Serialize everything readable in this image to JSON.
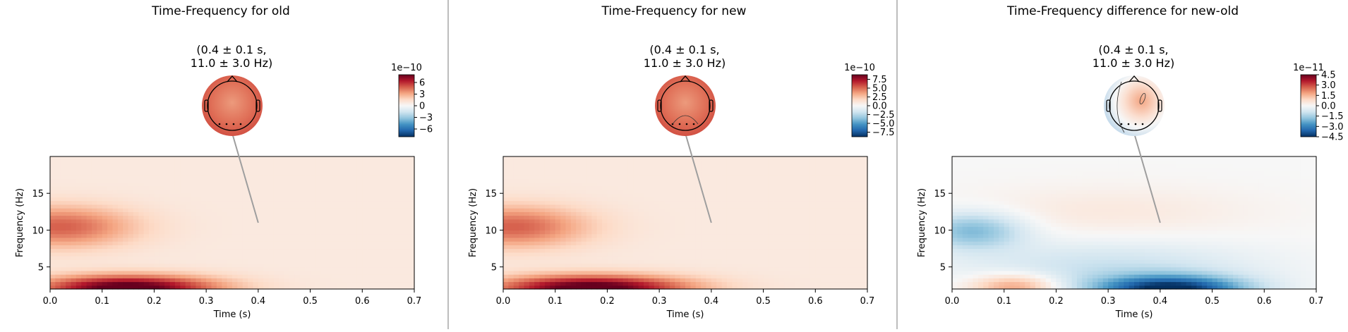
{
  "chart_data": [
    {
      "type": "heatmap",
      "title": "Time-Frequency for old",
      "xlabel": "Time (s)",
      "ylabel": "Frequency (Hz)",
      "xlim": [
        0.0,
        0.7
      ],
      "ylim": [
        2,
        20
      ],
      "xticks": [
        "0.0",
        "0.1",
        "0.2",
        "0.3",
        "0.4",
        "0.5",
        "0.6",
        "0.7"
      ],
      "yticks": [
        "5",
        "10",
        "15"
      ],
      "topomap": {
        "label_line1": "(0.4 ± 0.1 s,",
        "label_line2": "11.0 ± 3.0 Hz)",
        "callout_time": 0.4,
        "callout_freq": 11.0
      },
      "colorbar": {
        "exponent": "1e−10",
        "ticks": [
          "6",
          "3",
          "0",
          "−3",
          "−6"
        ],
        "tick_values": [
          6,
          3,
          0,
          -3,
          -6
        ],
        "range": [
          -8,
          8
        ]
      },
      "features": [
        {
          "t": 0.15,
          "f": 2.2,
          "amp": 1.0,
          "st": 0.12,
          "sf": 1.2
        },
        {
          "t": 0.02,
          "f": 10.5,
          "amp": 0.5,
          "st": 0.1,
          "sf": 2.0
        }
      ],
      "baseline": 0.1,
      "colormap": "RdBu_r"
    },
    {
      "type": "heatmap",
      "title": "Time-Frequency for new",
      "xlabel": "Time (s)",
      "ylabel": "Frequency (Hz)",
      "xlim": [
        0.0,
        0.7
      ],
      "ylim": [
        2,
        20
      ],
      "xticks": [
        "0.0",
        "0.1",
        "0.2",
        "0.3",
        "0.4",
        "0.5",
        "0.6",
        "0.7"
      ],
      "yticks": [
        "5",
        "10",
        "15"
      ],
      "topomap": {
        "label_line1": "(0.4 ± 0.1 s,",
        "label_line2": "11.0 ± 3.0 Hz)",
        "callout_time": 0.4,
        "callout_freq": 11.0
      },
      "colorbar": {
        "exponent": "1e−10",
        "ticks": [
          "7.5",
          "5.0",
          "2.5",
          "0.0",
          "−2.5",
          "−5.0",
          "−7.5"
        ],
        "tick_values": [
          7.5,
          5.0,
          2.5,
          0.0,
          -2.5,
          -5.0,
          -7.5
        ],
        "range": [
          -8.8,
          8.8
        ]
      },
      "features": [
        {
          "t": 0.17,
          "f": 2.2,
          "amp": 1.0,
          "st": 0.13,
          "sf": 1.2
        },
        {
          "t": 0.02,
          "f": 10.5,
          "amp": 0.5,
          "st": 0.1,
          "sf": 2.0
        }
      ],
      "baseline": 0.1,
      "colormap": "RdBu_r"
    },
    {
      "type": "heatmap",
      "title": "Time-Frequency difference for new-old",
      "xlabel": "Time (s)",
      "ylabel": "Frequency (Hz)",
      "xlim": [
        0.0,
        0.7
      ],
      "ylim": [
        2,
        20
      ],
      "xticks": [
        "0.0",
        "0.1",
        "0.2",
        "0.3",
        "0.4",
        "0.5",
        "0.6",
        "0.7"
      ],
      "yticks": [
        "5",
        "10",
        "15"
      ],
      "topomap": {
        "label_line1": "(0.4 ± 0.1 s,",
        "label_line2": "11.0 ± 3.0 Hz)",
        "callout_time": 0.4,
        "callout_freq": 11.0
      },
      "colorbar": {
        "exponent": "1e−11",
        "ticks": [
          "4.5",
          "3.0",
          "1.5",
          "0.0",
          "−1.5",
          "−3.0",
          "−4.5"
        ],
        "tick_values": [
          4.5,
          3.0,
          1.5,
          0.0,
          -1.5,
          -3.0,
          -4.5
        ],
        "range": [
          -4.5,
          4.5
        ]
      },
      "features": [
        {
          "t": 0.04,
          "f": 10.0,
          "amp": -0.45,
          "st": 0.07,
          "sf": 1.8
        },
        {
          "t": 0.42,
          "f": 2.0,
          "amp": -1.0,
          "st": 0.1,
          "sf": 1.3
        },
        {
          "t": 0.3,
          "f": 5.0,
          "amp": -0.22,
          "st": 0.2,
          "sf": 2.5
        },
        {
          "t": 0.12,
          "f": 2.4,
          "amp": 0.45,
          "st": 0.06,
          "sf": 1.2
        },
        {
          "t": 0.3,
          "f": 12.5,
          "amp": 0.1,
          "st": 0.2,
          "sf": 2.5
        }
      ],
      "baseline": 0.0,
      "colormap": "RdBu_r"
    }
  ]
}
